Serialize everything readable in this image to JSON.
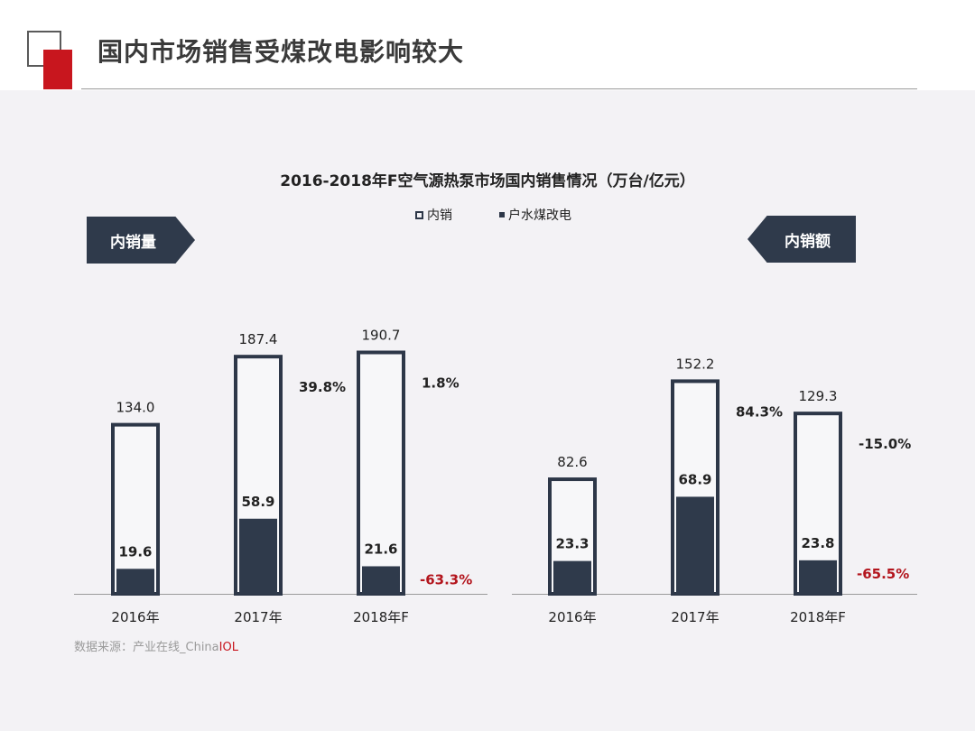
{
  "header": {
    "title": "国内市场销售受煤改电影响较大"
  },
  "tags": {
    "left": "内销量",
    "right": "内销额"
  },
  "colors": {
    "outline": "#2d3748",
    "fill": "#2f3a4b",
    "negative": "#b3151d",
    "accent_red": "#c8161e"
  },
  "source": {
    "prefix": "数据来源：产业在线_China",
    "highlight": "IOL"
  },
  "chart_data": {
    "type": "bar",
    "title": "2016-2018年F空气源热泵市场国内销售情况（万台/亿元）",
    "legend": [
      "内销",
      "户水煤改电"
    ],
    "legend_position": "top-center",
    "grid": false,
    "panels": [
      {
        "label": "内销量",
        "categories": [
          "2016年",
          "2017年",
          "2018年F"
        ],
        "series": [
          {
            "name": "内销",
            "values": [
              134.0,
              187.4,
              190.7
            ]
          },
          {
            "name": "户水煤改电",
            "values": [
              19.6,
              58.9,
              21.6
            ]
          }
        ],
        "growth_total": [
          "",
          "39.8%",
          "1.8%"
        ],
        "growth_coal": [
          "",
          "",
          "-63.3%"
        ]
      },
      {
        "label": "内销额",
        "categories": [
          "2016年",
          "2017年",
          "2018年F"
        ],
        "series": [
          {
            "name": "内销",
            "values": [
              82.6,
              152.2,
              129.3
            ]
          },
          {
            "name": "户水煤改电",
            "values": [
              23.3,
              68.9,
              23.8
            ]
          }
        ],
        "growth_total": [
          "",
          "84.3%",
          "-15.0%"
        ],
        "growth_coal": [
          "",
          "",
          "-65.5%"
        ]
      }
    ]
  }
}
